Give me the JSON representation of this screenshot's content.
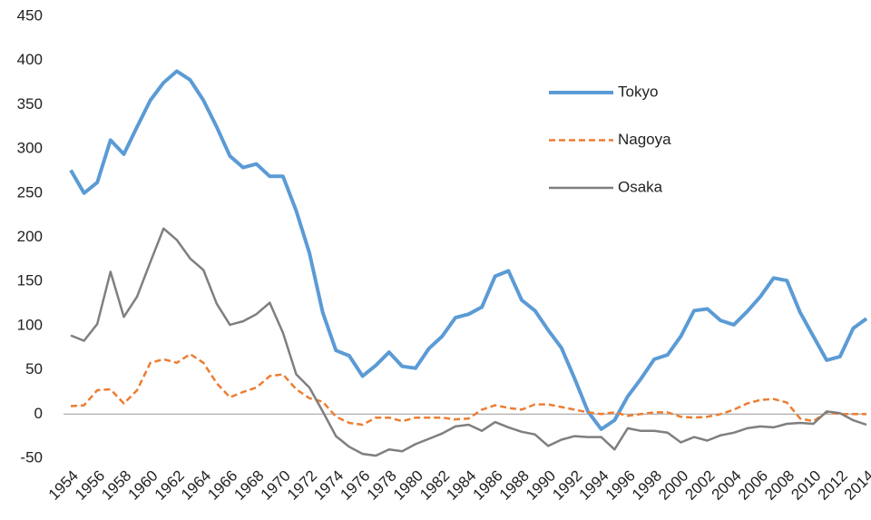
{
  "chart_data": {
    "type": "line",
    "categories": [
      "1954",
      null,
      "1956",
      null,
      "1958",
      null,
      "1960",
      null,
      "1962",
      null,
      "1964",
      null,
      "1966",
      null,
      "1968",
      null,
      "1970",
      null,
      "1972",
      null,
      "1974",
      null,
      "1976",
      null,
      "1978",
      null,
      "1980",
      null,
      "1982",
      null,
      "1984",
      null,
      "1986",
      null,
      "1988",
      null,
      "1990",
      null,
      "1992",
      null,
      "1994",
      null,
      "1996",
      null,
      "1998",
      null,
      "2000",
      null,
      "2002",
      null,
      "2004",
      null,
      "2006",
      null,
      "2008",
      null,
      "2010",
      null,
      "2012",
      null,
      "2014"
    ],
    "series": [
      {
        "name": "Tokyo",
        "color": "#5b9bd5",
        "dash": "solid",
        "values": [
          276,
          250,
          262,
          310,
          294,
          325,
          355,
          375,
          388,
          378,
          355,
          325,
          292,
          279,
          283,
          269,
          269,
          230,
          182,
          115,
          72,
          66,
          43,
          55,
          70,
          54,
          52,
          74,
          88,
          109,
          113,
          121,
          156,
          162,
          129,
          117,
          95,
          75,
          40,
          3,
          -17,
          -7,
          20,
          40,
          62,
          67,
          88,
          117,
          119,
          106,
          101,
          116,
          133,
          154,
          151,
          115,
          88,
          61,
          65,
          97,
          108
        ]
      },
      {
        "name": "Nagoya",
        "color": "#ed7d31",
        "dash": "dashed",
        "values": [
          9,
          10,
          27,
          28,
          12,
          27,
          58,
          62,
          58,
          68,
          58,
          35,
          19,
          25,
          30,
          43,
          45,
          28,
          18,
          14,
          -3,
          -10,
          -12,
          -4,
          -4,
          -8,
          -4,
          -4,
          -4,
          -6,
          -5,
          5,
          10,
          7,
          5,
          11,
          11,
          8,
          5,
          2,
          0,
          2,
          -2,
          0,
          2,
          2,
          -3,
          -4,
          -3,
          0,
          5,
          12,
          16,
          17,
          13,
          -5,
          -8,
          2,
          0,
          0,
          0
        ]
      },
      {
        "name": "Osaka",
        "color": "#7f7f7f",
        "dash": "solid",
        "values": [
          89,
          83,
          102,
          161,
          110,
          133,
          172,
          210,
          197,
          176,
          163,
          125,
          101,
          105,
          113,
          126,
          92,
          45,
          30,
          3,
          -25,
          -37,
          -45,
          -47,
          -40,
          -42,
          -34,
          -28,
          -22,
          -14,
          -12,
          -19,
          -9,
          -15,
          -20,
          -23,
          -36,
          -29,
          -25,
          -26,
          -26,
          -40,
          -16,
          -19,
          -19,
          -21,
          -32,
          -26,
          -30,
          -24,
          -21,
          -16,
          -14,
          -15,
          -11,
          -10,
          -11,
          3,
          1,
          -7,
          -12
        ]
      }
    ],
    "ylim": [
      -50,
      450
    ],
    "yticks": [
      -50,
      0,
      50,
      100,
      150,
      200,
      250,
      300,
      350,
      400,
      450
    ],
    "grid": false
  }
}
